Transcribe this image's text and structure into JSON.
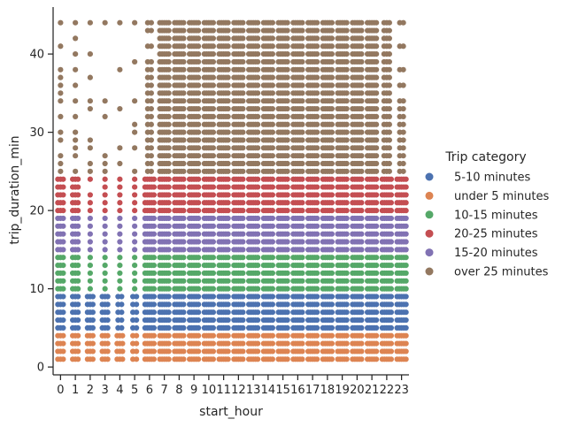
{
  "chart_data": {
    "type": "scatter",
    "subtype": "strip",
    "title": "",
    "xlabel": "start_hour",
    "ylabel": "trip_duration_min",
    "x": [
      "0",
      "1",
      "2",
      "3",
      "4",
      "5",
      "6",
      "7",
      "8",
      "9",
      "10",
      "11",
      "12",
      "13",
      "14",
      "15",
      "16",
      "17",
      "18",
      "19",
      "20",
      "21",
      "22",
      "23"
    ],
    "ylim": [
      -1,
      46
    ],
    "yticks": [
      0,
      10,
      20,
      30,
      40
    ],
    "grid": false,
    "legend": {
      "title": "Trip category",
      "placement": "right",
      "entries": [
        "5-10 minutes",
        "under 5 minutes",
        "10-15 minutes",
        "20-25 minutes",
        "15-20 minutes",
        "over 25 minutes"
      ]
    },
    "colors": {
      "5-10 minutes": "#4c72b0",
      "under 5 minutes": "#dd8452",
      "10-15 minutes": "#55a868",
      "20-25 minutes": "#c44e52",
      "15-20 minutes": "#8172b3",
      "over 25 minutes": "#937860"
    },
    "series": [
      {
        "name": "under 5 minutes",
        "duration_range": [
          1,
          4
        ]
      },
      {
        "name": "5-10 minutes",
        "duration_range": [
          5,
          9
        ]
      },
      {
        "name": "10-15 minutes",
        "duration_range": [
          10,
          14
        ]
      },
      {
        "name": "15-20 minutes",
        "duration_range": [
          15,
          19
        ]
      },
      {
        "name": "20-25 minutes",
        "duration_range": [
          20,
          24
        ]
      },
      {
        "name": "over 25 minutes",
        "duration_range": [
          25,
          44
        ]
      }
    ],
    "sparse_over_25_values": {
      "0": [
        25,
        26,
        27,
        29,
        30,
        32,
        34,
        35,
        36,
        37,
        38,
        41,
        44
      ],
      "1": [
        25,
        27,
        28,
        29,
        30,
        32,
        34,
        36,
        38,
        40,
        42,
        44
      ],
      "2": [
        25,
        26,
        28,
        29,
        33,
        34,
        37,
        40,
        44
      ],
      "3": [
        25,
        26,
        27,
        32,
        34,
        44
      ],
      "4": [
        26,
        28,
        33,
        38,
        44
      ],
      "5": [
        25,
        28,
        30,
        31,
        34,
        39,
        44
      ],
      "6": [
        25,
        26,
        27,
        28,
        29,
        30,
        31,
        32,
        33,
        34,
        35,
        36,
        37,
        38,
        39,
        41,
        43,
        44
      ],
      "22": [
        25,
        26,
        27,
        28,
        29,
        30,
        31,
        32,
        33,
        34,
        35,
        36,
        37,
        38,
        39,
        40,
        41,
        42,
        43,
        44
      ],
      "23": [
        25,
        26,
        27,
        28,
        29,
        30,
        31,
        32,
        33,
        34,
        36,
        38,
        41,
        44
      ]
    },
    "sparse_mid_values": {
      "2": [
        15,
        16,
        17,
        18,
        19,
        20,
        21,
        22,
        24
      ],
      "3": [
        15,
        16,
        17,
        18,
        19,
        20,
        21,
        22,
        23,
        24
      ],
      "4": [
        9,
        10,
        11,
        12,
        13,
        14,
        15,
        16,
        17,
        18,
        19,
        20,
        21,
        22,
        23,
        24
      ],
      "5": [
        15,
        16,
        17,
        18,
        19,
        20,
        21,
        22,
        23,
        24
      ]
    }
  }
}
